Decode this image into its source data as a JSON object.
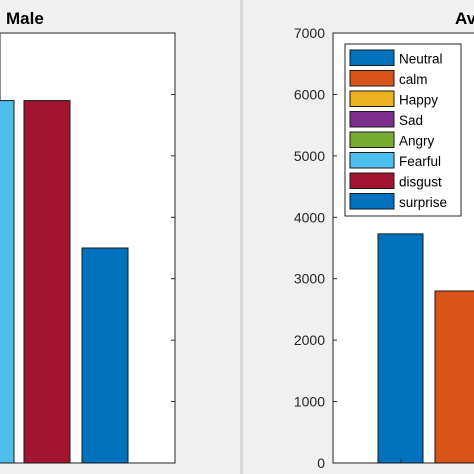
{
  "chart_data": [
    {
      "type": "bar",
      "title": "Male",
      "title_visible_fragment": "Male",
      "categories": [
        "Fearful",
        "disgust",
        "surprise"
      ],
      "values": [
        5900,
        5900,
        3500
      ],
      "colors": [
        "#4DBEEE",
        "#A2142F",
        "#0072BD"
      ],
      "ylim": [
        0,
        7000
      ],
      "ytick_labels_visible": false,
      "grid": false
    },
    {
      "type": "bar",
      "title": "Av",
      "categories": [
        "Neutral",
        "calm"
      ],
      "values": [
        3730,
        2800
      ],
      "colors": [
        "#0072BD",
        "#D95319"
      ],
      "ylim": [
        0,
        7000
      ],
      "yticks": [
        0,
        1000,
        2000,
        3000,
        4000,
        5000,
        6000,
        7000
      ],
      "ytick_labels": [
        "0",
        "1000",
        "2000",
        "3000",
        "4000",
        "5000",
        "6000",
        "7000"
      ],
      "grid": false,
      "legend": {
        "position": "top-left",
        "entries": [
          {
            "name": "Neutral",
            "color": "#0072BD"
          },
          {
            "name": "calm",
            "color": "#D95319"
          },
          {
            "name": "Happy",
            "color": "#EDB120"
          },
          {
            "name": "Sad",
            "color": "#7E2F8E"
          },
          {
            "name": "Angry",
            "color": "#77AC30"
          },
          {
            "name": "Fearful",
            "color": "#4DBEEE"
          },
          {
            "name": "disgust",
            "color": "#A2142F"
          },
          {
            "name": "surprise",
            "color": "#0072BD"
          }
        ]
      }
    }
  ]
}
